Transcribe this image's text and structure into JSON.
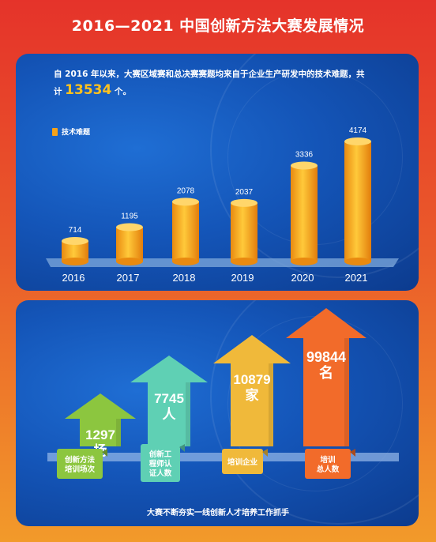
{
  "title": "2016—2021 中国创新方法大赛发展情况",
  "intro": {
    "line1": "自 2016 年以来，大赛区域赛和总决赛赛题均来自于企业生产研发中的技术难题，共",
    "prefix": "计",
    "total": "13534",
    "suffix": "个。"
  },
  "chart_data": [
    {
      "type": "bar",
      "categories": [
        "2016",
        "2017",
        "2018",
        "2019",
        "2020",
        "2021"
      ],
      "series": [
        {
          "name": "技术难题",
          "values": [
            714,
            1195,
            2078,
            2037,
            3336,
            4174
          ]
        }
      ],
      "legend": "top-left"
    },
    {
      "type": "bar",
      "categories": [
        "创新方法培训场次",
        "创新工程师认证人数",
        "培训企业",
        "培训总人数"
      ],
      "category_lines": [
        [
          "创新方法",
          "培训场次"
        ],
        [
          "创新工",
          "程师认",
          "证人数"
        ],
        [
          "培训企业"
        ],
        [
          "培训",
          "总人数"
        ]
      ],
      "values": [
        1297,
        7745,
        10879,
        99844
      ],
      "units": [
        "场",
        "人",
        "家",
        "名"
      ],
      "colors": [
        "#8cc63f",
        "#5fd0b4",
        "#f0b93a",
        "#f26b2a"
      ]
    }
  ],
  "slogan": "大赛不断夯实一线创新人才培养工作抓手"
}
